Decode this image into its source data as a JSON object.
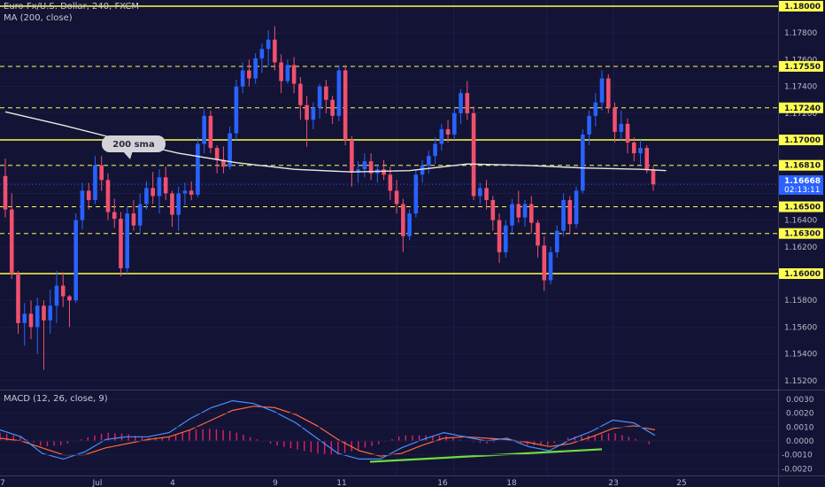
{
  "header": {
    "symbol_line": "Euro Fx/U.S. Dollar, 240, FXCM",
    "ma_line": "MA (200, close)",
    "macd_line": "MACD (12, 26, close, 9)"
  },
  "annotation": {
    "label": "200 sma"
  },
  "price_axis": {
    "labels": [
      "1.17800",
      "1.17600",
      "1.17400",
      "1.17200",
      "1.16400",
      "1.16200",
      "1.15800",
      "1.15600",
      "1.15400",
      "1.15200"
    ],
    "levels": [
      {
        "label": "1.18000",
        "value": 1.18,
        "style": "solid"
      },
      {
        "label": "1.17550",
        "value": 1.1755,
        "style": "dashed"
      },
      {
        "label": "1.17240",
        "value": 1.1724,
        "style": "dashed"
      },
      {
        "label": "1.17000",
        "value": 1.17,
        "style": "solid"
      },
      {
        "label": "1.16810",
        "value": 1.1681,
        "style": "dashed"
      },
      {
        "label": "1.16500",
        "value": 1.165,
        "style": "dashed"
      },
      {
        "label": "1.16300",
        "value": 1.163,
        "style": "dashed"
      },
      {
        "label": "1.16000",
        "value": 1.16,
        "style": "solid"
      }
    ],
    "current_price": "1.16668",
    "current_price_value": 1.16668,
    "countdown": "02:13:11"
  },
  "macd_axis": {
    "labels": [
      "0.0030",
      "0.0020",
      "0.0010",
      "0.0000",
      "-0.0010",
      "-0.0020"
    ]
  },
  "time_axis": {
    "labels": [
      "7",
      "Jul",
      "4",
      "9",
      "11",
      "16",
      "18",
      "23",
      "25"
    ]
  },
  "colors": {
    "background": "#131335",
    "bull": "#2962ff",
    "bear": "#f0506e",
    "level": "#ffff4d",
    "ma": "#e8e8e0",
    "macd_line": "#4a90ff",
    "signal_line": "#ff6a3a",
    "hist": "#e0206a",
    "trendline": "#6fdc3c"
  },
  "chart_data": {
    "type": "candlestick",
    "ohlc": [
      [
        1.1673,
        1.1686,
        1.1642,
        1.1648
      ],
      [
        1.1648,
        1.166,
        1.1596,
        1.16
      ],
      [
        1.16,
        1.1602,
        1.1555,
        1.1563
      ],
      [
        1.1563,
        1.1578,
        1.1546,
        1.157
      ],
      [
        1.157,
        1.158,
        1.1551,
        1.156
      ],
      [
        1.156,
        1.1582,
        1.154,
        1.1576
      ],
      [
        1.1576,
        1.158,
        1.1528,
        1.1565
      ],
      [
        1.1565,
        1.1588,
        1.1555,
        1.1576
      ],
      [
        1.1576,
        1.1602,
        1.1563,
        1.1591
      ],
      [
        1.1591,
        1.1601,
        1.1575,
        1.1583
      ],
      [
        1.1583,
        1.1584,
        1.156,
        1.158
      ],
      [
        1.158,
        1.1645,
        1.1578,
        1.164
      ],
      [
        1.164,
        1.1668,
        1.1633,
        1.1662
      ],
      [
        1.1662,
        1.1668,
        1.1648,
        1.1655
      ],
      [
        1.1655,
        1.1688,
        1.1652,
        1.1681
      ],
      [
        1.1681,
        1.1688,
        1.1662,
        1.167
      ],
      [
        1.167,
        1.1675,
        1.164,
        1.1646
      ],
      [
        1.1646,
        1.1656,
        1.1634,
        1.1641
      ],
      [
        1.1641,
        1.1646,
        1.1598,
        1.1604
      ],
      [
        1.1604,
        1.165,
        1.16,
        1.1645
      ],
      [
        1.1645,
        1.1655,
        1.1632,
        1.1636
      ],
      [
        1.1636,
        1.166,
        1.163,
        1.1652
      ],
      [
        1.1652,
        1.1669,
        1.1648,
        1.1664
      ],
      [
        1.1664,
        1.1676,
        1.1652,
        1.1658
      ],
      [
        1.1658,
        1.1678,
        1.1645,
        1.1672
      ],
      [
        1.1672,
        1.168,
        1.1655,
        1.166
      ],
      [
        1.166,
        1.1662,
        1.1635,
        1.1644
      ],
      [
        1.1644,
        1.1665,
        1.1632,
        1.166
      ],
      [
        1.166,
        1.1668,
        1.1651,
        1.1662
      ],
      [
        1.1662,
        1.1669,
        1.1655,
        1.1659
      ],
      [
        1.1659,
        1.1702,
        1.1657,
        1.1697
      ],
      [
        1.1697,
        1.1723,
        1.169,
        1.1718
      ],
      [
        1.1718,
        1.1722,
        1.169,
        1.1694
      ],
      [
        1.1694,
        1.1696,
        1.1675,
        1.1685
      ],
      [
        1.1685,
        1.1695,
        1.1675,
        1.168
      ],
      [
        1.168,
        1.171,
        1.1678,
        1.1705
      ],
      [
        1.1705,
        1.1745,
        1.17,
        1.174
      ],
      [
        1.174,
        1.1758,
        1.1735,
        1.1752
      ],
      [
        1.1752,
        1.176,
        1.174,
        1.1746
      ],
      [
        1.1746,
        1.1765,
        1.1742,
        1.1761
      ],
      [
        1.1761,
        1.1772,
        1.175,
        1.1768
      ],
      [
        1.1768,
        1.1782,
        1.1755,
        1.1775
      ],
      [
        1.1775,
        1.1785,
        1.1752,
        1.1758
      ],
      [
        1.1758,
        1.1764,
        1.1735,
        1.1744
      ],
      [
        1.1744,
        1.176,
        1.1742,
        1.1756
      ],
      [
        1.1756,
        1.1762,
        1.1735,
        1.1742
      ],
      [
        1.1742,
        1.1747,
        1.1715,
        1.1726
      ],
      [
        1.1726,
        1.1733,
        1.1695,
        1.1715
      ],
      [
        1.1715,
        1.1728,
        1.1708,
        1.1724
      ],
      [
        1.1724,
        1.1742,
        1.1716,
        1.174
      ],
      [
        1.174,
        1.1745,
        1.172,
        1.173
      ],
      [
        1.173,
        1.1733,
        1.1712,
        1.1718
      ],
      [
        1.1718,
        1.1756,
        1.1714,
        1.1752
      ],
      [
        1.1752,
        1.1756,
        1.1696,
        1.17
      ],
      [
        1.17,
        1.1703,
        1.1665,
        1.1676
      ],
      [
        1.1676,
        1.1684,
        1.1668,
        1.1678
      ],
      [
        1.1678,
        1.169,
        1.1672,
        1.1684
      ],
      [
        1.1684,
        1.169,
        1.167,
        1.1675
      ],
      [
        1.1675,
        1.1682,
        1.1668,
        1.1678
      ],
      [
        1.1678,
        1.1685,
        1.167,
        1.1674
      ],
      [
        1.1674,
        1.168,
        1.1655,
        1.1662
      ],
      [
        1.1662,
        1.167,
        1.1645,
        1.1652
      ],
      [
        1.1652,
        1.1656,
        1.1616,
        1.1628
      ],
      [
        1.1628,
        1.1648,
        1.1625,
        1.1645
      ],
      [
        1.1645,
        1.1678,
        1.1642,
        1.1674
      ],
      [
        1.1674,
        1.1685,
        1.1668,
        1.1681
      ],
      [
        1.1681,
        1.1692,
        1.1675,
        1.1688
      ],
      [
        1.1688,
        1.1702,
        1.1682,
        1.1697
      ],
      [
        1.1697,
        1.1712,
        1.1692,
        1.1708
      ],
      [
        1.1708,
        1.1715,
        1.1698,
        1.1704
      ],
      [
        1.1704,
        1.1725,
        1.17,
        1.172
      ],
      [
        1.172,
        1.1738,
        1.1712,
        1.1735
      ],
      [
        1.1735,
        1.1744,
        1.1715,
        1.172
      ],
      [
        1.172,
        1.1725,
        1.1655,
        1.1658
      ],
      [
        1.1658,
        1.1668,
        1.1652,
        1.1664
      ],
      [
        1.1664,
        1.167,
        1.1648,
        1.1655
      ],
      [
        1.1655,
        1.1658,
        1.1632,
        1.164
      ],
      [
        1.164,
        1.1645,
        1.1608,
        1.1616
      ],
      [
        1.1616,
        1.164,
        1.1612,
        1.1636
      ],
      [
        1.1636,
        1.1656,
        1.163,
        1.1652
      ],
      [
        1.1652,
        1.1662,
        1.1638,
        1.1642
      ],
      [
        1.1642,
        1.1655,
        1.1635,
        1.1652
      ],
      [
        1.1652,
        1.1658,
        1.163,
        1.1638
      ],
      [
        1.1638,
        1.164,
        1.1612,
        1.1621
      ],
      [
        1.1621,
        1.1628,
        1.1587,
        1.1595
      ],
      [
        1.1595,
        1.162,
        1.1592,
        1.1616
      ],
      [
        1.1616,
        1.1636,
        1.1612,
        1.1632
      ],
      [
        1.1632,
        1.166,
        1.1628,
        1.1655
      ],
      [
        1.1655,
        1.1658,
        1.163,
        1.1637
      ],
      [
        1.1637,
        1.1665,
        1.1634,
        1.1662
      ],
      [
        1.1662,
        1.1708,
        1.166,
        1.1704
      ],
      [
        1.1704,
        1.1722,
        1.1696,
        1.1718
      ],
      [
        1.1718,
        1.1735,
        1.171,
        1.1728
      ],
      [
        1.1728,
        1.1752,
        1.1722,
        1.1746
      ],
      [
        1.1746,
        1.1749,
        1.172,
        1.1724
      ],
      [
        1.1724,
        1.1728,
        1.1698,
        1.1706
      ],
      [
        1.1706,
        1.1722,
        1.17,
        1.1712
      ],
      [
        1.1712,
        1.1716,
        1.169,
        1.1698
      ],
      [
        1.1698,
        1.1702,
        1.1684,
        1.169
      ],
      [
        1.169,
        1.17,
        1.1682,
        1.1694
      ],
      [
        1.1694,
        1.1696,
        1.1675,
        1.1678
      ],
      [
        1.1678,
        1.168,
        1.1662,
        1.16668
      ]
    ],
    "ma200": [
      [
        0,
        1.1721
      ],
      [
        9,
        1.1711
      ],
      [
        18,
        1.17
      ],
      [
        27,
        1.169
      ],
      [
        36,
        1.1683
      ],
      [
        45,
        1.1678
      ],
      [
        54,
        1.1676
      ],
      [
        63,
        1.1677
      ],
      [
        72,
        1.1682
      ],
      [
        81,
        1.1681
      ],
      [
        90,
        1.1679
      ],
      [
        99,
        1.1678
      ],
      [
        103,
        1.1677
      ]
    ],
    "macd": [
      [
        0,
        0.0008
      ],
      [
        5,
        0.0003
      ],
      [
        10,
        -0.0009
      ],
      [
        15,
        -0.0013
      ],
      [
        20,
        -0.0008
      ],
      [
        25,
        0.0001
      ],
      [
        30,
        0.0003
      ],
      [
        35,
        0.0003
      ],
      [
        40,
        0.0006
      ],
      [
        45,
        0.0016
      ],
      [
        50,
        0.0024
      ],
      [
        55,
        0.0029
      ],
      [
        60,
        0.0027
      ],
      [
        65,
        0.0021
      ],
      [
        70,
        0.0013
      ],
      [
        75,
        0.0002
      ],
      [
        80,
        -0.0009
      ],
      [
        85,
        -0.0013
      ],
      [
        90,
        -0.0013
      ],
      [
        95,
        -0.0005
      ],
      [
        100,
        0.0001
      ],
      [
        105,
        0.0006
      ],
      [
        110,
        0.0003
      ],
      [
        115,
        0.0
      ],
      [
        120,
        0.0002
      ],
      [
        125,
        -0.0004
      ],
      [
        130,
        -0.0007
      ],
      [
        135,
        0.0001
      ],
      [
        140,
        0.0007
      ],
      [
        145,
        0.0015
      ],
      [
        150,
        0.0013
      ],
      [
        155,
        0.0004
      ]
    ],
    "signal": [
      [
        0,
        0.0002
      ],
      [
        5,
        0.0
      ],
      [
        10,
        -0.0005
      ],
      [
        15,
        -0.001
      ],
      [
        20,
        -0.001
      ],
      [
        25,
        -0.0005
      ],
      [
        30,
        -0.0002
      ],
      [
        35,
        0.0001
      ],
      [
        40,
        0.0003
      ],
      [
        45,
        0.0008
      ],
      [
        50,
        0.0015
      ],
      [
        55,
        0.0022
      ],
      [
        60,
        0.0025
      ],
      [
        65,
        0.0024
      ],
      [
        70,
        0.0019
      ],
      [
        75,
        0.0011
      ],
      [
        80,
        0.0001
      ],
      [
        85,
        -0.0007
      ],
      [
        90,
        -0.0011
      ],
      [
        95,
        -0.0009
      ],
      [
        100,
        -0.0003
      ],
      [
        105,
        0.0002
      ],
      [
        110,
        0.0003
      ],
      [
        115,
        0.0002
      ],
      [
        120,
        0.0001
      ],
      [
        125,
        -0.0001
      ],
      [
        130,
        -0.0004
      ],
      [
        135,
        -0.0002
      ],
      [
        140,
        0.0003
      ],
      [
        145,
        0.0009
      ],
      [
        150,
        0.0011
      ],
      [
        155,
        0.0008
      ]
    ],
    "trendline": [
      [
        0,
        -0.0015
      ],
      [
        1,
        -0.0006
      ]
    ]
  }
}
